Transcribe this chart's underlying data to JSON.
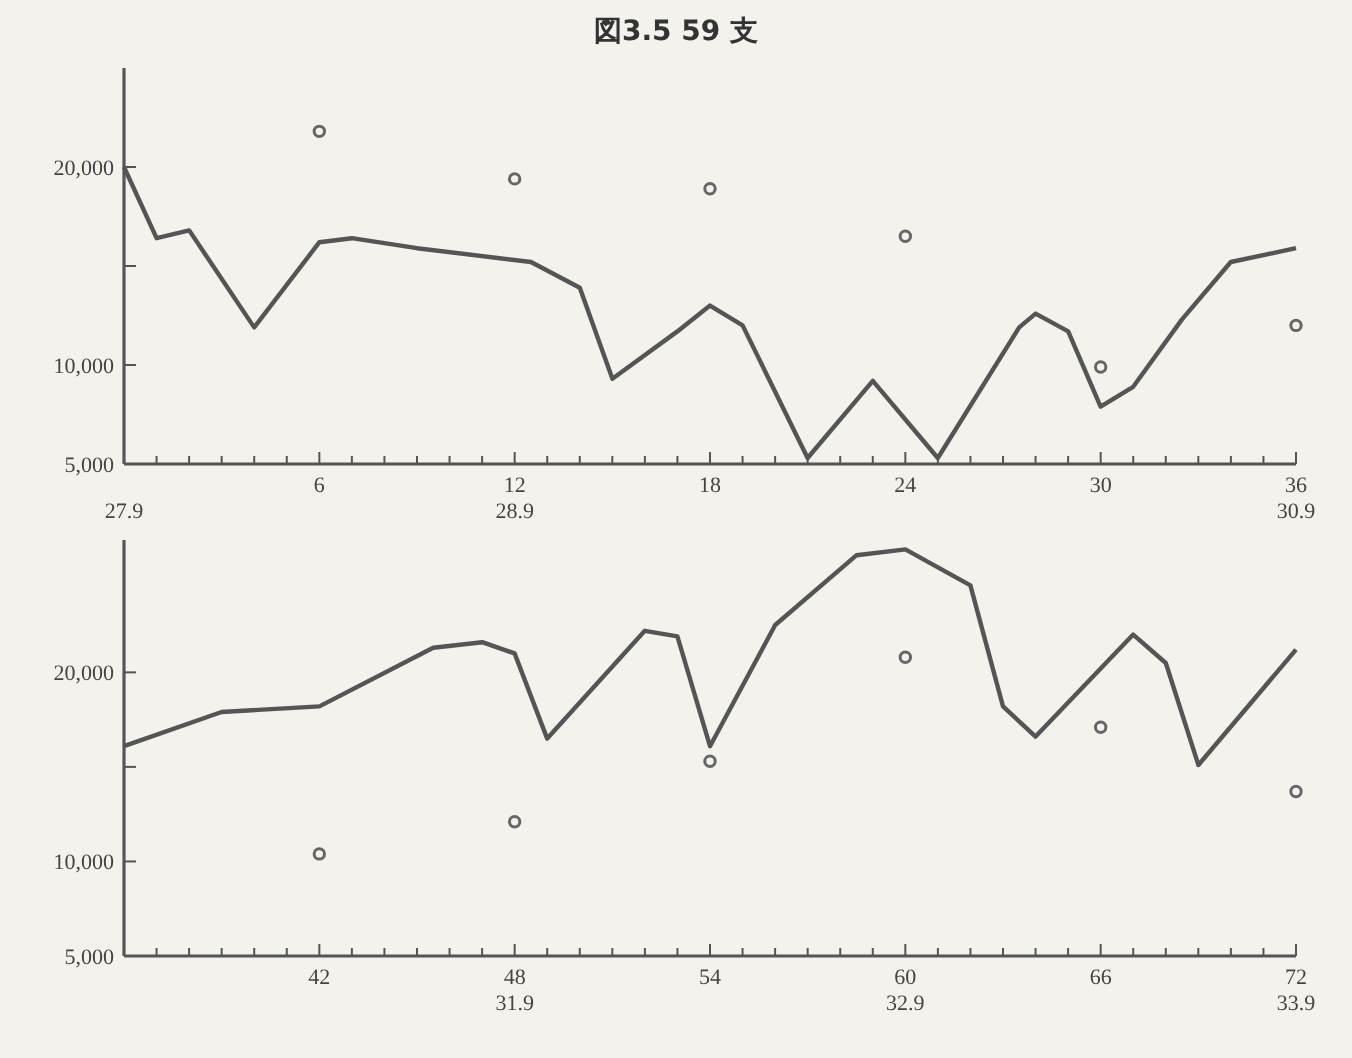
{
  "chart_data": [
    {
      "type": "line",
      "title": "図3.5 59 支",
      "xlim": [
        0,
        36
      ],
      "xticks": [
        {
          "value": 0,
          "label": null
        },
        {
          "value": 1,
          "label": null
        },
        {
          "value": 2,
          "label": null
        },
        {
          "value": 3,
          "label": null
        },
        {
          "value": 4,
          "label": null
        },
        {
          "value": 5,
          "label": null
        },
        6,
        {
          "value": 7,
          "label": null
        },
        {
          "value": 8,
          "label": null
        },
        {
          "value": 9,
          "label": null
        },
        {
          "value": 10,
          "label": null
        },
        {
          "value": 11,
          "label": null
        },
        12,
        {
          "value": 13,
          "label": null
        },
        {
          "value": 14,
          "label": null
        },
        {
          "value": 15,
          "label": null
        },
        {
          "value": 16,
          "label": null
        },
        {
          "value": 17,
          "label": null
        },
        18,
        {
          "value": 19,
          "label": null
        },
        {
          "value": 20,
          "label": null
        },
        {
          "value": 21,
          "label": null
        },
        {
          "value": 22,
          "label": null
        },
        {
          "value": 23,
          "label": null
        },
        24,
        {
          "value": 25,
          "label": null
        },
        {
          "value": 26,
          "label": null
        },
        {
          "value": 27,
          "label": null
        },
        {
          "value": 28,
          "label": null
        },
        {
          "value": 29,
          "label": null
        },
        30,
        {
          "value": 31,
          "label": null
        },
        {
          "value": 32,
          "label": null
        },
        {
          "value": 33,
          "label": null
        },
        {
          "value": 34,
          "label": null
        },
        {
          "value": 35,
          "label": null
        },
        36
      ],
      "x2lim": [
        27.9,
        30.9
      ],
      "x2ticks": [
        27.9,
        28.9,
        30.9
      ],
      "ylim": [
        5000,
        25000
      ],
      "yticks": [
        {
          "value": 5000,
          "label": "5,000"
        },
        {
          "value": 10000,
          "label": "10,000"
        },
        {
          "value": 15000,
          "label": null
        },
        {
          "value": 20000,
          "label": "20,000"
        }
      ],
      "series": [
        {
          "color": "#555555",
          "x": [
            0,
            1,
            2,
            4,
            6,
            7,
            9,
            12.5,
            14,
            15,
            17,
            18,
            19,
            21,
            23,
            25,
            27.5,
            28,
            29,
            30,
            31,
            32.5,
            34,
            36
          ],
          "values": [
            20000,
            16400,
            16800,
            11900,
            16200,
            16400,
            15900,
            15200,
            13900,
            9300,
            11700,
            13000,
            12000,
            5300,
            9200,
            5300,
            11900,
            12600,
            11700,
            7900,
            8900,
            12300,
            15200,
            15900
          ]
        },
        {
          "type": "scatter",
          "marker": "circle",
          "color": "#666666",
          "x": [
            6,
            12,
            18,
            24,
            30,
            36
          ],
          "values": [
            21800,
            19400,
            18900,
            16500,
            9900,
            12000
          ]
        }
      ]
    },
    {
      "type": "line",
      "xlim": [
        36,
        72
      ],
      "xticks": [
        {
          "value": 36,
          "label": null
        },
        {
          "value": 37,
          "label": null
        },
        {
          "value": 38,
          "label": null
        },
        {
          "value": 39,
          "label": null
        },
        {
          "value": 40,
          "label": null
        },
        {
          "value": 41,
          "label": null
        },
        42,
        {
          "value": 43,
          "label": null
        },
        {
          "value": 44,
          "label": null
        },
        {
          "value": 45,
          "label": null
        },
        {
          "value": 46,
          "label": null
        },
        {
          "value": 47,
          "label": null
        },
        48,
        {
          "value": 49,
          "label": null
        },
        {
          "value": 50,
          "label": null
        },
        {
          "value": 51,
          "label": null
        },
        {
          "value": 52,
          "label": null
        },
        {
          "value": 53,
          "label": null
        },
        54,
        {
          "value": 55,
          "label": null
        },
        {
          "value": 56,
          "label": null
        },
        {
          "value": 57,
          "label": null
        },
        {
          "value": 58,
          "label": null
        },
        {
          "value": 59,
          "label": null
        },
        60,
        {
          "value": 61,
          "label": null
        },
        {
          "value": 62,
          "label": null
        },
        {
          "value": 63,
          "label": null
        },
        {
          "value": 64,
          "label": null
        },
        {
          "value": 65,
          "label": null
        },
        66,
        {
          "value": 67,
          "label": null
        },
        {
          "value": 68,
          "label": null
        },
        {
          "value": 69,
          "label": null
        },
        {
          "value": 70,
          "label": null
        },
        {
          "value": 71,
          "label": null
        },
        72
      ],
      "x2lim": [
        30.9,
        33.9
      ],
      "x2ticks": [
        31.9,
        32.9,
        33.9
      ],
      "ylim": [
        5000,
        27000
      ],
      "yticks": [
        {
          "value": 5000,
          "label": "5,000"
        },
        {
          "value": 10000,
          "label": "10,000"
        },
        {
          "value": 15000,
          "label": null
        },
        {
          "value": 20000,
          "label": "20,000"
        }
      ],
      "series": [
        {
          "color": "#555555",
          "x": [
            36,
            39,
            42,
            45.5,
            47,
            48,
            49,
            52,
            53,
            54,
            56,
            58.5,
            60,
            62,
            63,
            64,
            67,
            68,
            69,
            72
          ],
          "values": [
            16100,
            17900,
            18200,
            21300,
            21600,
            21000,
            16500,
            22200,
            21900,
            16100,
            22500,
            26200,
            26500,
            24600,
            18200,
            16600,
            22000,
            20500,
            15100,
            21200
          ]
        },
        {
          "type": "scatter",
          "marker": "circle",
          "color": "#666666",
          "x": [
            42,
            48,
            54,
            60,
            66,
            72
          ],
          "values": [
            10400,
            12100,
            15300,
            20800,
            17100,
            13700
          ]
        }
      ]
    }
  ]
}
